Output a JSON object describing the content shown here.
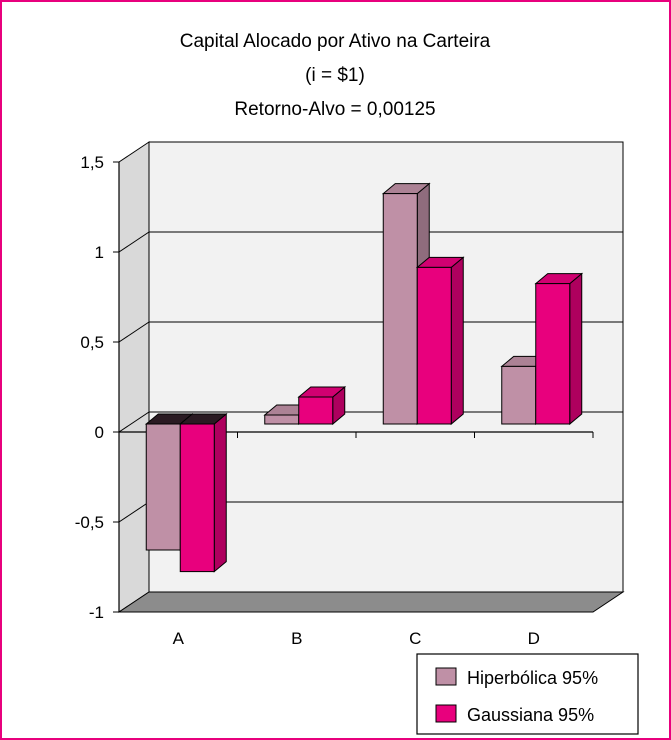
{
  "chart_data": {
    "type": "bar",
    "title": "Capital Alocado por Ativo na Carteira",
    "title_lines": [
      "Capital Alocado por Ativo na Carteira",
      "(i = $1)",
      "Retorno-Alvo = 0,00125"
    ],
    "categories": [
      "A",
      "B",
      "C",
      "D"
    ],
    "series": [
      {
        "name": "Hiperbólica 95%",
        "values": [
          -0.7,
          0.05,
          1.28,
          0.32
        ],
        "color": "#bf90a6"
      },
      {
        "name": "Gaussiana 95%",
        "values": [
          -0.82,
          0.15,
          0.87,
          0.78
        ],
        "color": "#e8007d"
      }
    ],
    "ylim": [
      -1,
      1.5
    ],
    "y_ticks": [
      1.5,
      1,
      0.5,
      0,
      -0.5,
      -1
    ],
    "y_tick_labels": [
      "1,5",
      "1",
      "0,5",
      "0",
      "-0,5",
      "-1"
    ],
    "grid": true,
    "legend_position": "bottom-right",
    "three_d": true
  }
}
